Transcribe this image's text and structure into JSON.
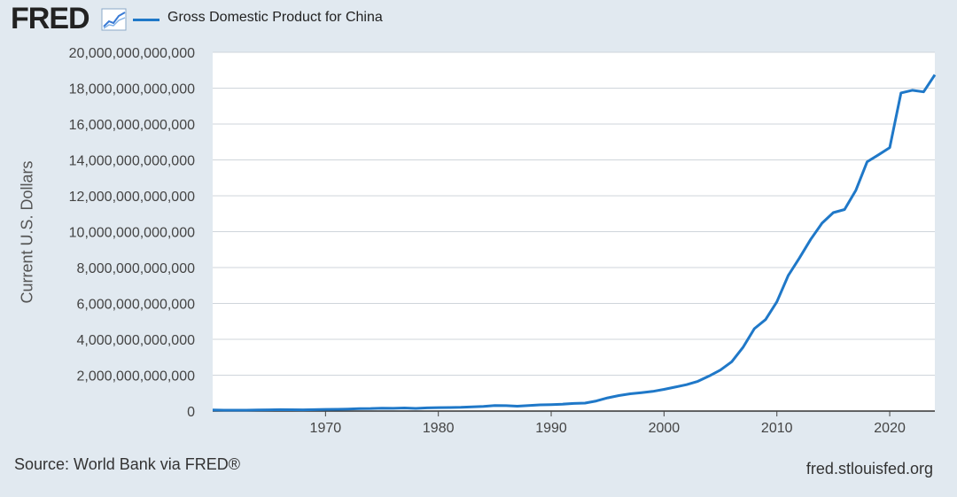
{
  "brand": {
    "logo_text": "FRED",
    "logo_icon": "graph-line-icon"
  },
  "source": "Source: World Bank via FRED®",
  "site": "fred.stlouisfed.org",
  "colors": {
    "line": "#1f78c8",
    "background": "#e1e9f0",
    "plot": "#ffffff",
    "grid": "#cfd5db"
  },
  "chart_data": {
    "type": "line",
    "title": "",
    "xlabel": "",
    "ylabel": "Current U.S. Dollars",
    "legend": [
      "Gross Domestic Product for China"
    ],
    "xlim": [
      1960,
      2024
    ],
    "ylim": [
      0,
      20000000000000
    ],
    "xticks": [
      1970,
      1980,
      1990,
      2000,
      2010,
      2020
    ],
    "yticks": [
      0,
      2000000000000,
      4000000000000,
      6000000000000,
      8000000000000,
      10000000000000,
      12000000000000,
      14000000000000,
      16000000000000,
      18000000000000,
      20000000000000
    ],
    "ytick_labels": [
      "0",
      "2,000,000,000,000",
      "4,000,000,000,000",
      "6,000,000,000,000",
      "8,000,000,000,000",
      "10,000,000,000,000",
      "12,000,000,000,000",
      "14,000,000,000,000",
      "16,000,000,000,000",
      "18,000,000,000,000",
      "20,000,000,000,000"
    ],
    "series": [
      {
        "name": "Gross Domestic Product for China",
        "x": [
          1960,
          1961,
          1962,
          1963,
          1964,
          1965,
          1966,
          1967,
          1968,
          1969,
          1970,
          1971,
          1972,
          1973,
          1974,
          1975,
          1976,
          1977,
          1978,
          1979,
          1980,
          1981,
          1982,
          1983,
          1984,
          1985,
          1986,
          1987,
          1988,
          1989,
          1990,
          1991,
          1992,
          1993,
          1994,
          1995,
          1996,
          1997,
          1998,
          1999,
          2000,
          2001,
          2002,
          2003,
          2004,
          2005,
          2006,
          2007,
          2008,
          2009,
          2010,
          2011,
          2012,
          2013,
          2014,
          2015,
          2016,
          2017,
          2018,
          2019,
          2020,
          2021,
          2022,
          2023,
          2024
        ],
        "values": [
          59700000000,
          50100000000,
          47200000000,
          50700000000,
          59700000000,
          70400000000,
          76700000000,
          72900000000,
          70800000000,
          79700000000,
          92600000000,
          99800000000,
          113700000000,
          138500000000,
          144200000000,
          163400000000,
          153900000000,
          174900000000,
          149500000000,
          178300000000,
          191100000000,
          195900000000,
          205100000000,
          230700000000,
          259900000000,
          309500000000,
          300800000000,
          272900000000,
          312400000000,
          347800000000,
          360900000000,
          383400000000,
          426900000000,
          444700000000,
          564300000000,
          734500000000,
          863700000000,
          961600000000,
          1029000000000,
          1094000000000,
          1211300000000,
          1339400000000,
          1470600000000,
          1660300000000,
          1955300000000,
          2285900000000,
          2752100000000,
          3550300000000,
          4594300000000,
          5101700000000,
          6087200000000,
          7551500000000,
          8532200000000,
          9570400000000,
          10475700000000,
          11061600000000,
          11233300000000,
          12310400000000,
          13894800000000,
          14280000000000,
          14687700000000,
          17734100000000,
          17881800000000,
          17794800000000,
          18743800000000
        ]
      }
    ]
  }
}
